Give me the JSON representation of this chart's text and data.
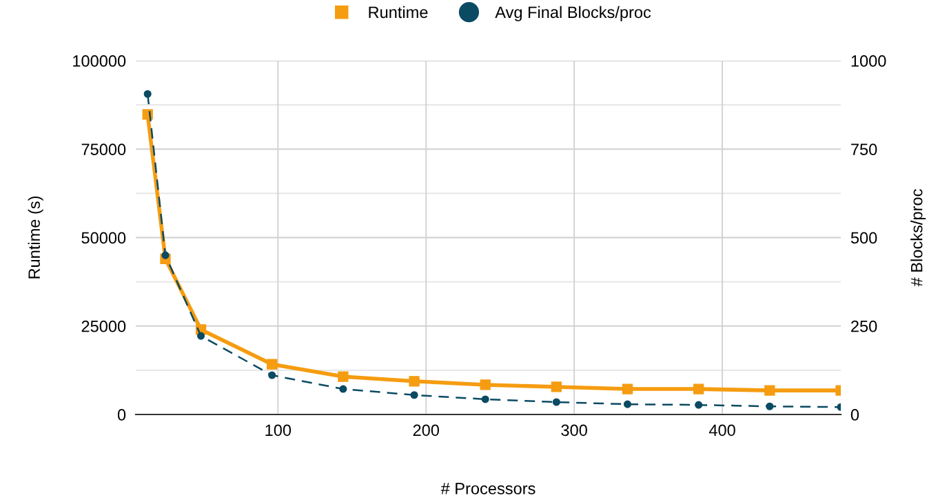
{
  "chart_data": {
    "type": "line",
    "xlabel": "# Processors",
    "ylabel": "Runtime (s)",
    "y2label": "# Blocks/proc",
    "x": [
      12,
      24,
      48,
      96,
      144,
      192,
      240,
      288,
      336,
      384,
      432,
      480
    ],
    "series": [
      {
        "name": "Runtime",
        "color": "#f59c10",
        "marker": "square",
        "line_style": "solid",
        "values": [
          84800,
          44000,
          24000,
          14200,
          10700,
          9400,
          8400,
          7800,
          7200,
          7200,
          6800,
          6800
        ]
      },
      {
        "name": "Avg Final Blocks/proc",
        "color": "#0b4a63",
        "marker": "circle",
        "line_style": "dashed",
        "axis": "y2",
        "values": [
          906,
          450,
          222,
          111,
          72,
          55,
          43,
          35,
          29,
          27,
          23,
          21
        ]
      }
    ],
    "xlim": [
      4,
      480
    ],
    "xticks": [
      100,
      200,
      300,
      400
    ],
    "ylim": [
      0,
      100000
    ],
    "yticks": [
      0,
      25000,
      50000,
      75000,
      100000
    ],
    "y2lim": [
      0,
      1000
    ],
    "y2ticks": [
      0,
      250,
      500,
      750,
      1000
    ],
    "grid": true,
    "legend": "top"
  }
}
